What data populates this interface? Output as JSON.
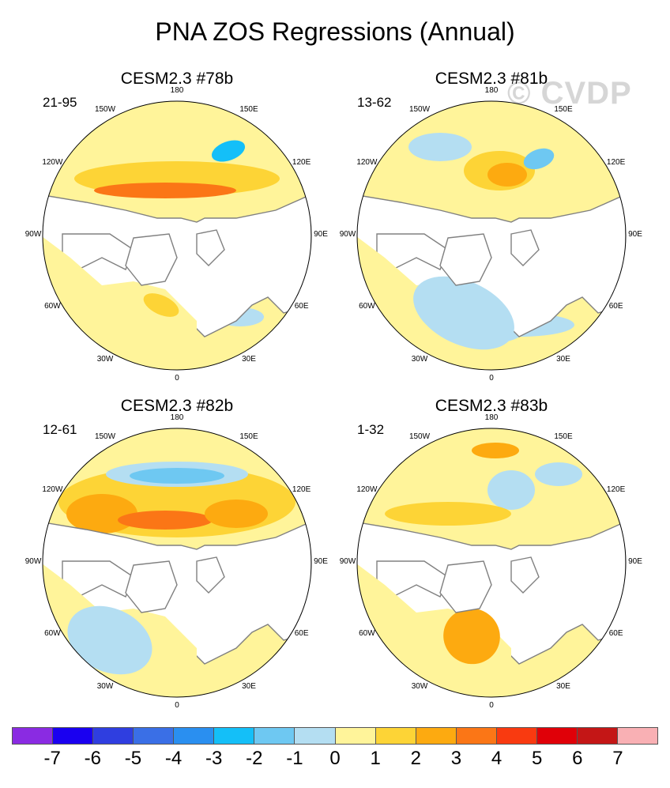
{
  "figure_title": "PNA ZOS Regressions (Annual)",
  "watermark": "© CVDP",
  "longitude_labels": {
    "top": "180",
    "bottom": "0",
    "left": "90W",
    "right": "90E",
    "upper_left_2": "120W",
    "upper_left_1": "150W",
    "upper_right_1": "150E",
    "upper_right_2": "120E",
    "lower_left_2": "60W",
    "lower_left_1": "30W",
    "lower_right_2": "60E",
    "lower_right_1": "30E"
  },
  "panels": [
    {
      "title": "CESM2.3 #78b",
      "years": "21-95"
    },
    {
      "title": "CESM2.3 #81b",
      "years": "13-62"
    },
    {
      "title": "CESM2.3 #82b",
      "years": "12-61"
    },
    {
      "title": "CESM2.3 #83b",
      "years": "1-32"
    }
  ],
  "colorbar": {
    "colors": [
      "#8a2be2",
      "#1a00f0",
      "#2f3ee0",
      "#3a6fe6",
      "#2a8ff0",
      "#14bff8",
      "#6ec8f2",
      "#b4def2",
      "#fff49a",
      "#fdd436",
      "#fdaa10",
      "#fb7616",
      "#f93a10",
      "#e00008",
      "#c41616",
      "#f9b0b4"
    ],
    "tick_labels": [
      "-7",
      "-6",
      "-5",
      "-4",
      "-3",
      "-2",
      "-1",
      "0",
      "1",
      "2",
      "3",
      "4",
      "5",
      "6",
      "7"
    ]
  },
  "legend_colors": {
    "land": "#ffffff",
    "coast": "#808080",
    "frame": "#000000"
  }
}
